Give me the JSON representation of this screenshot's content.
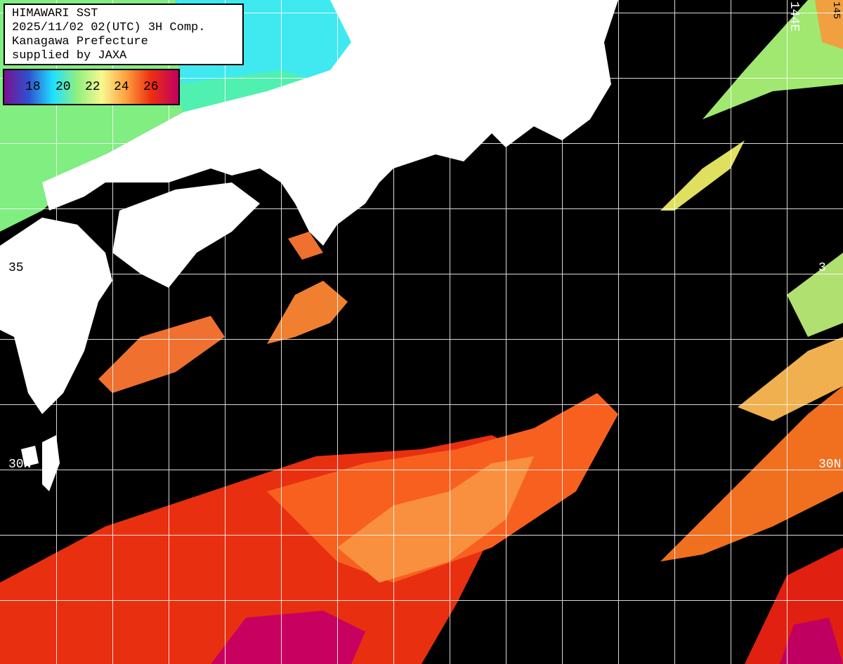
{
  "title": {
    "line1": "HIMAWARI SST",
    "line2": "2025/11/02 02(UTC) 3H Comp.",
    "line3": "Kanagawa Prefecture",
    "line4": "supplied by JAXA"
  },
  "colorbar": {
    "unit_ticks": [
      "18",
      "20",
      "22",
      "24",
      "26"
    ],
    "colors": [
      "#7a1090",
      "#3050d0",
      "#20e0ff",
      "#90f080",
      "#f8f890",
      "#ffa040",
      "#ee3010",
      "#c00060"
    ]
  },
  "grid_labels": {
    "lat_35_left": "35",
    "lat_30_left": "30N",
    "lat_30_right": "30N",
    "lat_35_right": "3",
    "lon_144": "144E",
    "lon_145_partial": "145"
  },
  "colors": {
    "land": "#ffffff",
    "no_data": "#000000",
    "grid": "#ffffff"
  }
}
